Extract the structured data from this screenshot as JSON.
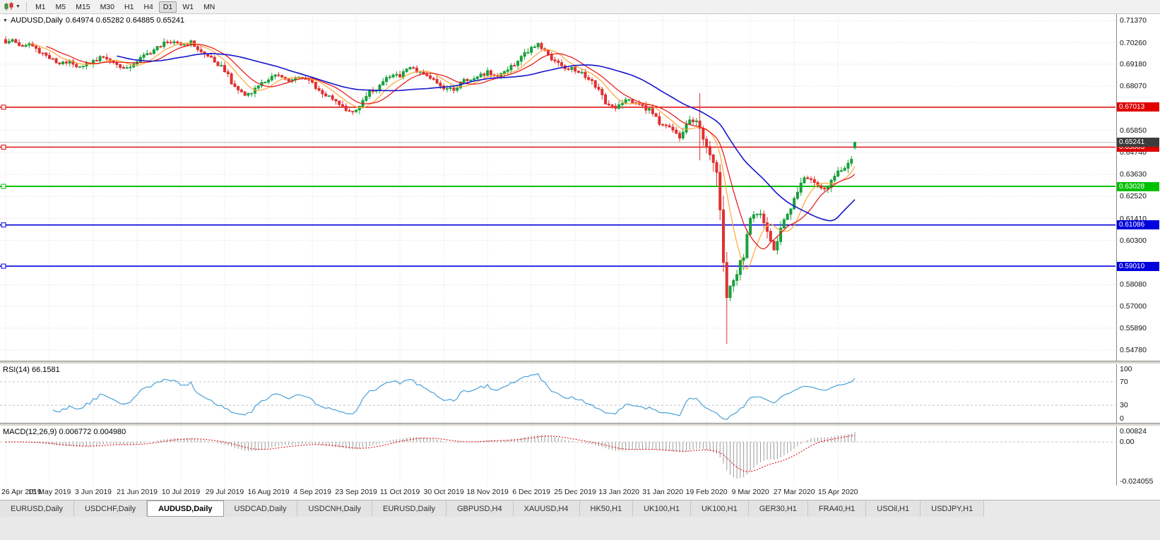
{
  "toolbar": {
    "timeframes": [
      "M1",
      "M5",
      "M15",
      "M30",
      "H1",
      "H4",
      "D1",
      "W1",
      "MN"
    ],
    "active_timeframe": "D1"
  },
  "chart_header": {
    "symbol_period": "AUDUSD,Daily",
    "quotes": "0.64974 0.65282 0.64885 0.65241"
  },
  "price_axis_labels": [
    "0.71370",
    "0.70260",
    "0.69180",
    "0.68070",
    "0.65850",
    "0.64740",
    "0.63630",
    "0.62520",
    "0.61410",
    "0.60300",
    "0.58080",
    "0.57000",
    "0.55890",
    "0.54780"
  ],
  "hlines": [
    {
      "value": 0.67013,
      "label": "0.67013",
      "color": "#e00000",
      "width": 1.4
    },
    {
      "value": 0.65003,
      "label": "0.65003",
      "color": "#e00000",
      "width": 1.4
    },
    {
      "value": 0.63028,
      "label": "0.63028",
      "color": "#00c000",
      "width": 2
    },
    {
      "value": 0.61086,
      "label": "0.61086",
      "color": "#0000dd",
      "width": 1.6
    },
    {
      "value": 0.5901,
      "label": "0.59010",
      "color": "#0000dd",
      "width": 1.6
    }
  ],
  "current_price": {
    "label": "0.65241",
    "value": 0.65241,
    "line_color": "#b8b8b8",
    "badge_color": "#3c3c3c"
  },
  "indicators": {
    "rsi": {
      "title": "RSI(14) 66.1581",
      "period": 14,
      "current": 66.1581,
      "line_color": "#4aa0d8",
      "levels": [
        {
          "label": "100",
          "value": 100
        },
        {
          "label": "70",
          "value": 70
        },
        {
          "label": "30",
          "value": 30
        },
        {
          "label": "0",
          "value": 0
        }
      ],
      "dashed_levels": [
        70,
        30
      ]
    },
    "macd": {
      "title": "MACD(12,26,9) 0.006772 0.004980",
      "fast": 12,
      "slow": 26,
      "signal": 9,
      "current_macd": 0.006772,
      "current_signal": 0.00498,
      "axis": [
        {
          "label": "0.00824",
          "value": 0.00824
        },
        {
          "label": "0.00",
          "value": 0
        },
        {
          "label": "-0.024055",
          "value": -0.024055
        }
      ],
      "range": [
        -0.0265,
        0.0095
      ],
      "hist_color": "#9a9a9a",
      "signal_color": "#e00000"
    }
  },
  "date_axis": [
    "26 Apr 2019",
    "15 May 2019",
    "3 Jun 2019",
    "21 Jun 2019",
    "10 Jul 2019",
    "29 Jul 2019",
    "16 Aug 2019",
    "4 Sep 2019",
    "23 Sep 2019",
    "11 Oct 2019",
    "30 Oct 2019",
    "18 Nov 2019",
    "6 Dec 2019",
    "25 Dec 2019",
    "13 Jan 2020",
    "31 Jan 2020",
    "19 Feb 2020",
    "9 Mar 2020",
    "27 Mar 2020",
    "15 Apr 2020"
  ],
  "tabs": {
    "items": [
      "EURUSD,Daily",
      "USDCHF,Daily",
      "AUDUSD,Daily",
      "USDCAD,Daily",
      "USDCNH,Daily",
      "EURUSD,Daily",
      "GBPUSD,H4",
      "XAUUSD,H4",
      "HK50,H1",
      "UK100,H1",
      "UK100,H1",
      "GER30,H1",
      "FRA40,H1",
      "USOil,H1",
      "USDJPY,H1"
    ],
    "active_index": 2
  },
  "chart_data": {
    "type": "candlestick",
    "symbol": "AUDUSD",
    "timeframe": "Daily",
    "title": "AUDUSD,Daily",
    "visible_range": {
      "price_min": 0.5425,
      "price_max": 0.717,
      "date_start": "26 Apr 2019",
      "date_end": "21 Apr 2020"
    },
    "last_ohlc": {
      "open": 0.64974,
      "high": 0.65282,
      "low": 0.64885,
      "close": 0.65241
    },
    "candle_count": 253,
    "candles_per_label": 13,
    "close_anchors": [
      [
        0,
        0.703
      ],
      [
        2,
        0.7043
      ],
      [
        4,
        0.7008
      ],
      [
        7,
        0.7022
      ],
      [
        10,
        0.6985
      ],
      [
        13,
        0.6948
      ],
      [
        16,
        0.6918
      ],
      [
        19,
        0.6938
      ],
      [
        22,
        0.6898
      ],
      [
        26,
        0.6932
      ],
      [
        29,
        0.6958
      ],
      [
        32,
        0.6925
      ],
      [
        35,
        0.6892
      ],
      [
        39,
        0.6935
      ],
      [
        43,
        0.698
      ],
      [
        47,
        0.7022
      ],
      [
        50,
        0.7038
      ],
      [
        52,
        0.7012
      ],
      [
        55,
        0.7028
      ],
      [
        58,
        0.6978
      ],
      [
        62,
        0.6938
      ],
      [
        65,
        0.6885
      ],
      [
        68,
        0.6805
      ],
      [
        71,
        0.6762
      ],
      [
        74,
        0.6792
      ],
      [
        78,
        0.6848
      ],
      [
        81,
        0.6862
      ],
      [
        84,
        0.6828
      ],
      [
        87,
        0.6858
      ],
      [
        91,
        0.6822
      ],
      [
        94,
        0.6772
      ],
      [
        97,
        0.6748
      ],
      [
        100,
        0.6705
      ],
      [
        103,
        0.6672
      ],
      [
        107,
        0.6762
      ],
      [
        110,
        0.6798
      ],
      [
        113,
        0.6848
      ],
      [
        117,
        0.6862
      ],
      [
        120,
        0.6898
      ],
      [
        123,
        0.6882
      ],
      [
        126,
        0.6852
      ],
      [
        130,
        0.6802
      ],
      [
        133,
        0.6788
      ],
      [
        136,
        0.6832
      ],
      [
        139,
        0.6842
      ],
      [
        143,
        0.6878
      ],
      [
        146,
        0.6858
      ],
      [
        149,
        0.6898
      ],
      [
        152,
        0.6932
      ],
      [
        155,
        0.6988
      ],
      [
        158,
        0.7022
      ],
      [
        160,
        0.6988
      ],
      [
        163,
        0.6928
      ],
      [
        166,
        0.6902
      ],
      [
        169,
        0.6892
      ],
      [
        172,
        0.6858
      ],
      [
        175,
        0.6812
      ],
      [
        178,
        0.6722
      ],
      [
        181,
        0.6692
      ],
      [
        184,
        0.6742
      ],
      [
        187,
        0.6722
      ],
      [
        191,
        0.6688
      ],
      [
        194,
        0.6622
      ],
      [
        197,
        0.6608
      ],
      [
        200,
        0.6548
      ],
      [
        203,
        0.6632
      ],
      [
        205,
        0.6638
      ],
      [
        206,
        0.6582
      ],
      [
        208,
        0.6488
      ],
      [
        210,
        0.6402
      ],
      [
        211,
        0.6342
      ],
      [
        212,
        0.6152
      ],
      [
        213,
        0.5902
      ],
      [
        214,
        0.5745
      ],
      [
        215,
        0.5802
      ],
      [
        217,
        0.5862
      ],
      [
        219,
        0.5962
      ],
      [
        221,
        0.6132
      ],
      [
        224,
        0.6172
      ],
      [
        226,
        0.6072
      ],
      [
        228,
        0.5982
      ],
      [
        231,
        0.6132
      ],
      [
        234,
        0.6232
      ],
      [
        237,
        0.6352
      ],
      [
        240,
        0.6332
      ],
      [
        243,
        0.6282
      ],
      [
        246,
        0.6362
      ],
      [
        249,
        0.6402
      ],
      [
        251,
        0.6452
      ],
      [
        252,
        0.6524
      ]
    ],
    "overrides": [
      {
        "i": 206,
        "high": 0.6772,
        "low": 0.6434
      },
      {
        "i": 214,
        "low": 0.551
      }
    ],
    "volatility_base": 0.0013,
    "colors": {
      "up": "#18a03c",
      "down": "#e03030"
    },
    "moving_averages": [
      {
        "period": 8,
        "type": "sma",
        "color": "#ffa534",
        "width": 1.2
      },
      {
        "period": 13,
        "type": "sma",
        "color": "#e81010",
        "width": 1.2
      },
      {
        "period": 34,
        "type": "sma",
        "color": "#1414cc",
        "width": 1.6
      }
    ],
    "horizontal_levels": [
      0.67013,
      0.65003,
      0.63028,
      0.61086,
      0.5901
    ]
  }
}
